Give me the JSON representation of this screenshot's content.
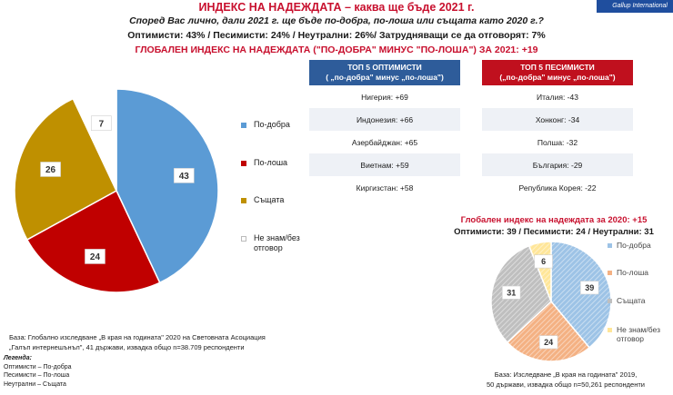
{
  "logo": "Gallup International",
  "header": {
    "title": "ИНДЕКС НА НАДЕЖДАТА – каква ще бъде 2021 г.",
    "question": "Според Вас лично, дали 2021 г. ще бъде по-добра, по-лоша или същата като 2020 г.?",
    "summary": "Оптимисти: 43% / Песимисти: 24% / Неутрални: 26%/ Затрудняващи се да отговорят: 7%",
    "index_line": "ГЛОБАЛЕН ИНДЕКС НА НАДЕЖДАТА (\"ПО-ДОБРА\" МИНУС \"ПО-ЛОША\") ЗА 2021: +19"
  },
  "colors": {
    "better": "#5b9bd5",
    "worse": "#c00000",
    "same": "#bf9000",
    "unknown": "#ffffff",
    "better_2020": "#9dc3e6",
    "worse_2020": "#f4b183",
    "same_2020": "#bfbfbf",
    "unknown_2020": "#ffe699"
  },
  "chart_data": [
    {
      "type": "pie",
      "title": "2021",
      "categories": [
        "По-добра",
        "По-лоша",
        "Същата",
        "Не знам/без отговор"
      ],
      "values": [
        43,
        24,
        26,
        7
      ],
      "legend": [
        "По-добра",
        "По-лоша",
        "Същата",
        "Не знам/без отговор"
      ]
    },
    {
      "type": "pie",
      "title": "2020",
      "categories": [
        "По-добра",
        "По-лоша",
        "Същата",
        "Не знам/без отговор"
      ],
      "values": [
        39,
        24,
        31,
        6
      ],
      "legend": [
        "По-добра",
        "По-лоша",
        "Същата",
        "Не знам/без отговор"
      ]
    }
  ],
  "legend_2021": {
    "better": "По-добра",
    "worse": "По-лоша",
    "same": "Същата",
    "unknown": "Не знам/без отговор"
  },
  "legend_2020": {
    "better": "По-добра",
    "worse": "По-лоша",
    "same": "Същата",
    "unknown": "Не знам/без отговор"
  },
  "optimists": {
    "title": "ТОП 5 ОПТИМИСТИ",
    "subtitle": "( „по-добра\" минус „по-лоша\")",
    "rows": [
      "Нигерия: +69",
      "Индонезия: +66",
      "Азербайджан: +65",
      "Виетнам: +59",
      "Киргизстан: +58"
    ]
  },
  "pessimists": {
    "title": "ТОП 5 ПЕСИМИСТИ",
    "subtitle": "(„по-добра\" минус „по-лоша\")",
    "rows": [
      "Италия: -43",
      "Хонконг: -34",
      "Полша: -32",
      "България: -29",
      "Република Корея: -22"
    ]
  },
  "base_2021": {
    "line1": "База: Глобално изследване „В края на годината\" 2020 на Световната Асоциация",
    "line2": "„Галъп интернешънъл\", 41 държави, извадка общо n=38.709 респонденти"
  },
  "legend_box": {
    "title": "Легенда:",
    "line1": "Оптимисти – По-добра",
    "line2": "Песимисти – По-лоша",
    "line3": "Неутрални – Същата"
  },
  "index_2020": "Глобален индекс на надеждата за 2020: +15",
  "summary_2020": "Оптимисти: 39 / Песимисти: 24 / Неутрални: 31",
  "base_2020": {
    "line1": "База: Изследване „В края на годината\" 2019,",
    "line2": "50 държави, извадка общо n=50,261 респонденти"
  }
}
